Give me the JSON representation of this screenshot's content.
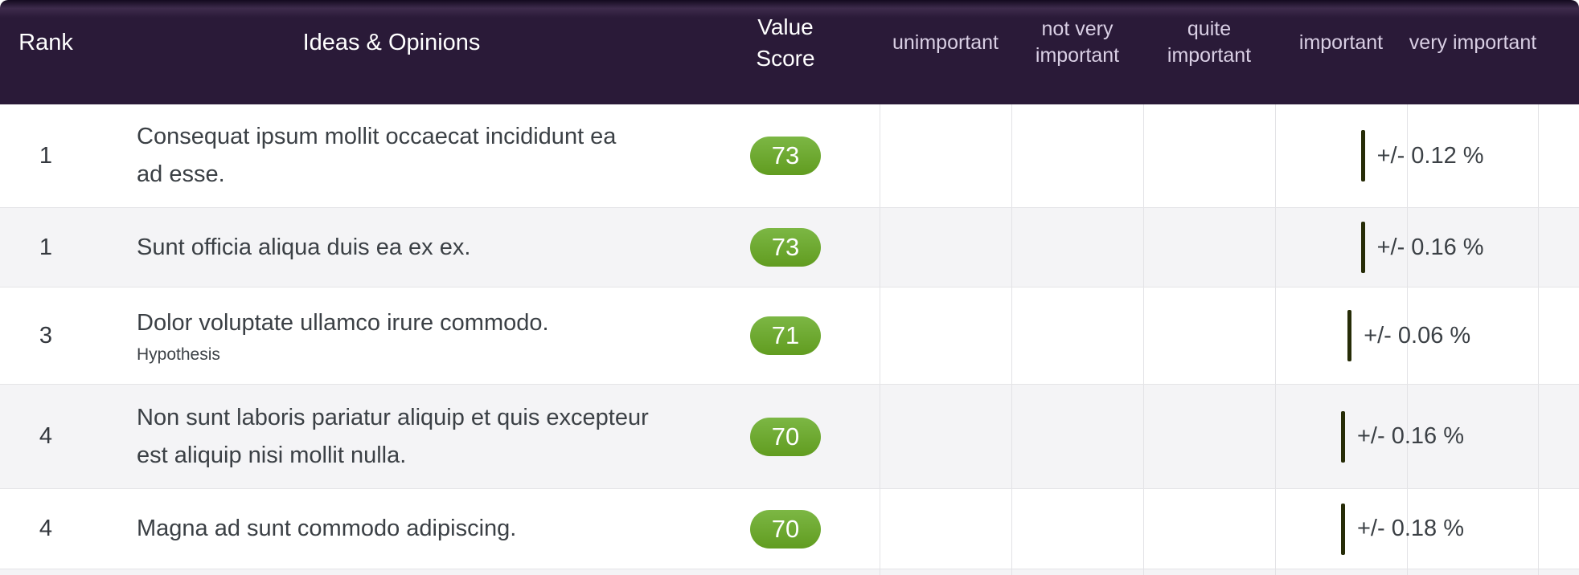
{
  "table": {
    "header": {
      "rank": "Rank",
      "ideas": "Ideas & Opinions",
      "value_score": "Value Score",
      "scale_labels": [
        "unimportant",
        "not very important",
        "quite important",
        "important",
        "very important"
      ]
    },
    "scale": {
      "min": 0,
      "max": 100
    },
    "rows": [
      {
        "rank": "1",
        "text": "Consequat ipsum mollit occaecat incididunt ea\nad esse.",
        "subtitle": "",
        "score": 73,
        "error": "+/- 0.12 %"
      },
      {
        "rank": "1",
        "text": "Sunt officia aliqua duis ea ex ex.",
        "subtitle": "",
        "score": 73,
        "error": "+/- 0.16 %"
      },
      {
        "rank": "3",
        "text": "Dolor voluptate ullamco irure commodo.",
        "subtitle": "Hypothesis",
        "score": 71,
        "error": "+/- 0.06 %"
      },
      {
        "rank": "4",
        "text": "Non sunt laboris pariatur aliquip et quis excepteur\nest aliquip nisi mollit nulla.",
        "subtitle": "",
        "score": 70,
        "error": "+/- 0.16 %"
      },
      {
        "rank": "4",
        "text": "Magna ad sunt commodo adipiscing.",
        "subtitle": "",
        "score": 70,
        "error": "+/- 0.18 %"
      }
    ]
  },
  "colors": {
    "header_bg": "#2a1a38",
    "header_text": "#ffffff",
    "header_muted_text": "#d9cfe4",
    "badge_green_light": "#7cb744",
    "badge_green_dark": "#619c20",
    "marker_olive": "#262c07",
    "row_alt_bg": "#f4f4f6",
    "grid_line": "#e3e3e6",
    "body_text": "#3b4045"
  }
}
